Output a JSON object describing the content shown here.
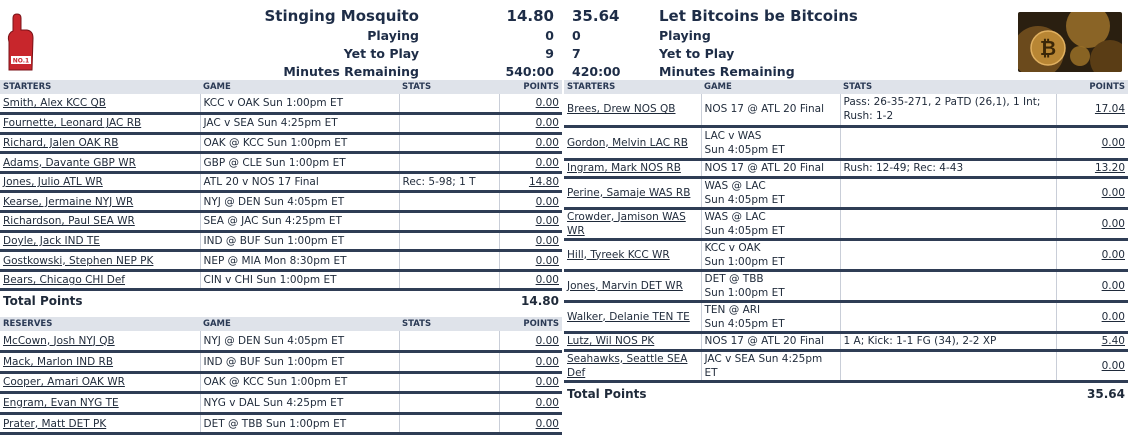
{
  "header": {
    "team_left": "Stinging Mosquito",
    "team_right": "Let Bitcoins be Bitcoins",
    "score_left": "14.80",
    "score_right": "35.64",
    "rows": [
      {
        "label": "Playing",
        "left": "0",
        "right": "0"
      },
      {
        "label": "Yet to Play",
        "left": "9",
        "right": "7"
      },
      {
        "label": "Minutes Remaining",
        "left": "540:00",
        "right": "420:00"
      }
    ],
    "logo_left_icon": "foam-finger-icon",
    "logo_right_icon": "bitcoin-coins-icon"
  },
  "columns": {
    "starters": "STARTERS",
    "reserves": "RESERVES",
    "game": "GAME",
    "stats": "STATS",
    "points": "POINTS"
  },
  "left_starters": [
    {
      "player": "Smith, Alex KCC QB",
      "game": "KCC v OAK Sun 1:00pm ET",
      "stats": "",
      "points": "0.00"
    },
    {
      "player": "Fournette, Leonard JAC RB",
      "game": "JAC v SEA Sun 4:25pm ET",
      "stats": "",
      "points": "0.00"
    },
    {
      "player": "Richard, Jalen OAK RB",
      "game": "OAK @ KCC Sun 1:00pm ET",
      "stats": "",
      "points": "0.00"
    },
    {
      "player": "Adams, Davante GBP WR",
      "game": "GBP @ CLE Sun 1:00pm ET",
      "stats": "",
      "points": "0.00"
    },
    {
      "player": "Jones, Julio ATL WR",
      "game": "ATL 20 v NOS 17 Final",
      "stats": "Rec: 5-98; 1 T",
      "points": "14.80"
    },
    {
      "player": "Kearse, Jermaine NYJ WR",
      "game": "NYJ @ DEN Sun 4:05pm ET",
      "stats": "",
      "points": "0.00"
    },
    {
      "player": "Richardson, Paul SEA WR",
      "game": "SEA @ JAC Sun 4:25pm ET",
      "stats": "",
      "points": "0.00"
    },
    {
      "player": "Doyle, Jack IND TE",
      "game": "IND @ BUF Sun 1:00pm ET",
      "stats": "",
      "points": "0.00"
    },
    {
      "player": "Gostkowski, Stephen NEP PK",
      "game": "NEP @ MIA Mon 8:30pm ET",
      "stats": "",
      "points": "0.00"
    },
    {
      "player": "Bears, Chicago CHI Def",
      "game": "CIN v CHI Sun 1:00pm ET",
      "stats": "",
      "points": "0.00"
    }
  ],
  "left_total": {
    "label": "Total Points",
    "value": "14.80"
  },
  "left_reserves": [
    {
      "player": "McCown, Josh NYJ QB",
      "game": "NYJ @ DEN Sun 4:05pm ET",
      "stats": "",
      "points": "0.00"
    },
    {
      "player": "Mack, Marlon IND RB",
      "game": "IND @ BUF Sun 1:00pm ET",
      "stats": "",
      "points": "0.00"
    },
    {
      "player": "Cooper, Amari OAK WR",
      "game": "OAK @ KCC Sun 1:00pm ET",
      "stats": "",
      "points": "0.00"
    },
    {
      "player": "Engram, Evan NYG TE",
      "game": "NYG v DAL Sun 4:25pm ET",
      "stats": "",
      "points": "0.00"
    },
    {
      "player": "Prater, Matt DET PK",
      "game": "DET @ TBB Sun 1:00pm ET",
      "stats": "",
      "points": "0.00"
    }
  ],
  "right_starters": [
    {
      "player": "Brees, Drew NOS QB",
      "game": "NOS 17 @ ATL 20 Final",
      "stats": "Pass: 26-35-271, 2 PaTD (26,1), 1 Int; Rush: 1-2",
      "points": "17.04"
    },
    {
      "player": "Gordon, Melvin LAC RB",
      "game": "LAC v WAS Sun 4:05pm ET",
      "stats": "",
      "points": "0.00"
    },
    {
      "player": "Ingram, Mark NOS RB",
      "game": "NOS 17 @ ATL 20 Final",
      "stats": "Rush: 12-49; Rec: 4-43",
      "points": "13.20"
    },
    {
      "player": "Perine, Samaje WAS RB",
      "game": "WAS @ LAC Sun 4:05pm ET",
      "stats": "",
      "points": "0.00"
    },
    {
      "player": "Crowder, Jamison WAS WR",
      "game": "WAS @ LAC Sun 4:05pm ET",
      "stats": "",
      "points": "0.00"
    },
    {
      "player": "Hill, Tyreek KCC WR",
      "game": "KCC v OAK Sun 1:00pm ET",
      "stats": "",
      "points": "0.00"
    },
    {
      "player": "Jones, Marvin DET WR",
      "game": "DET @ TBB Sun 1:00pm ET",
      "stats": "",
      "points": "0.00"
    },
    {
      "player": "Walker, Delanie TEN TE",
      "game": "TEN @ ARI Sun 4:05pm ET",
      "stats": "",
      "points": "0.00"
    },
    {
      "player": "Lutz, Wil NOS PK",
      "game": "NOS 17 @ ATL 20 Final",
      "stats": "1 A; Kick: 1-1 FG (34), 2-2 XP",
      "points": "5.40"
    },
    {
      "player": "Seahawks, Seattle SEA Def",
      "game": "JAC v SEA Sun 4:25pm ET",
      "stats": "",
      "points": "0.00"
    }
  ],
  "right_total": {
    "label": "Total Points",
    "value": "35.64"
  }
}
